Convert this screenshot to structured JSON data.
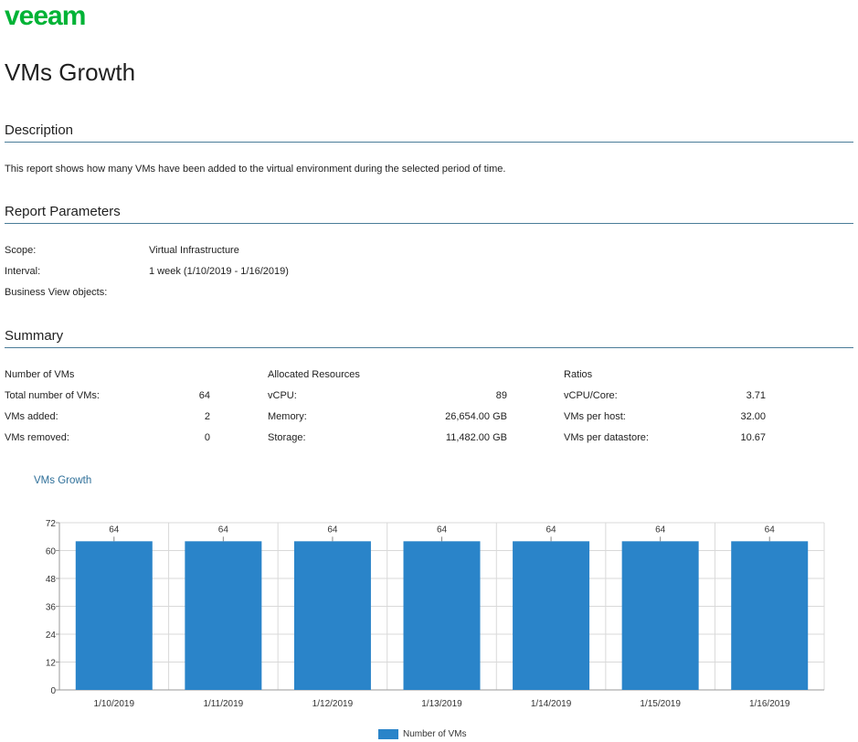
{
  "brand": {
    "logo_text": "veeam",
    "logo_color": "#00b336"
  },
  "page_title": "VMs Growth",
  "sections": {
    "description": {
      "heading": "Description",
      "text": "This report shows how many VMs have been added to the virtual environment during the selected period of time."
    },
    "parameters": {
      "heading": "Report Parameters",
      "items": [
        {
          "label": "Scope:",
          "value": "Virtual Infrastructure"
        },
        {
          "label": "Interval:",
          "value": "1 week (1/10/2019 - 1/16/2019)"
        },
        {
          "label": "Business View objects:",
          "value": ""
        }
      ]
    },
    "summary": {
      "heading": "Summary",
      "groups": [
        {
          "title": "Number of VMs",
          "rows": [
            {
              "label": "Total number of VMs:",
              "value": "64"
            },
            {
              "label": "VMs added:",
              "value": "2"
            },
            {
              "label": "VMs removed:",
              "value": "0"
            }
          ]
        },
        {
          "title": "Allocated Resources",
          "rows": [
            {
              "label": "vCPU:",
              "value": "89"
            },
            {
              "label": "Memory:",
              "value": "26,654.00 GB"
            },
            {
              "label": "Storage:",
              "value": "11,482.00 GB"
            }
          ]
        },
        {
          "title": "Ratios",
          "rows": [
            {
              "label": "vCPU/Core:",
              "value": "3.71"
            },
            {
              "label": "VMs per host:",
              "value": "32.00"
            },
            {
              "label": "VMs per datastore:",
              "value": "10.67"
            }
          ]
        }
      ]
    }
  },
  "chart_data": {
    "type": "bar",
    "title": "VMs Growth",
    "categories": [
      "1/10/2019",
      "1/11/2019",
      "1/12/2019",
      "1/13/2019",
      "1/14/2019",
      "1/15/2019",
      "1/16/2019"
    ],
    "series": [
      {
        "name": "Number of VMs",
        "values": [
          64,
          64,
          64,
          64,
          64,
          64,
          64
        ],
        "color": "#2a84c9"
      }
    ],
    "data_labels": [
      "64",
      "64",
      "64",
      "64",
      "64",
      "64",
      "64"
    ],
    "yticks": [
      0,
      12,
      24,
      36,
      48,
      60,
      72
    ],
    "ylim": [
      0,
      72
    ],
    "xlabel": "",
    "ylabel": "",
    "grid": true,
    "legend_position": "bottom"
  },
  "colors": {
    "accent_rule": "#4a7c98",
    "chart_title": "#2e6f99",
    "grid": "#d9d9d9",
    "axis": "#9a9a9a"
  }
}
